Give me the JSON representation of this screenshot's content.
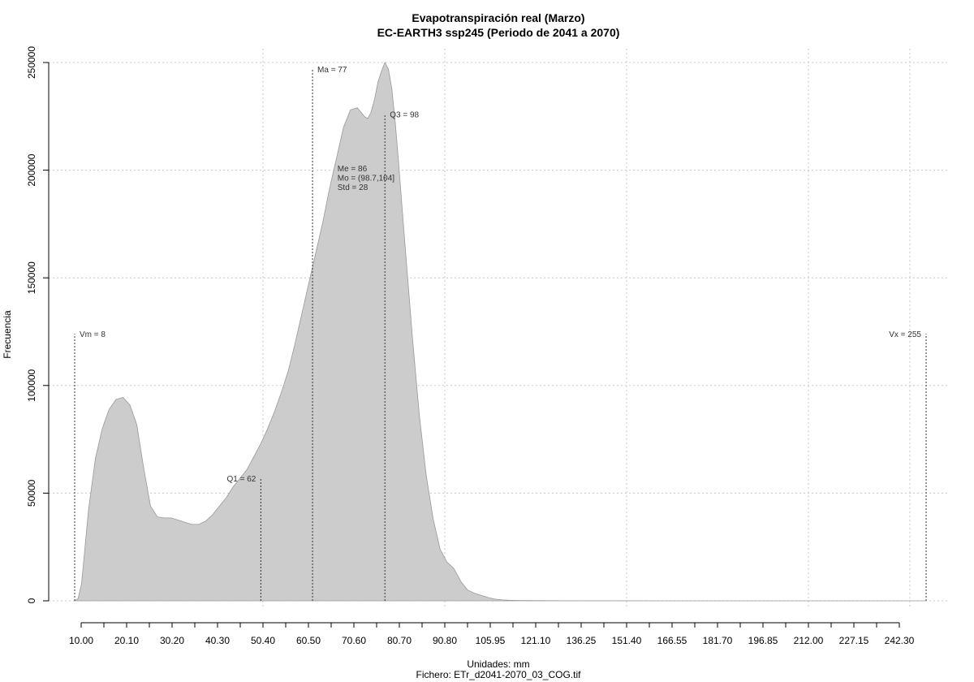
{
  "chart_data": {
    "type": "area",
    "title": "Evapotranspiración real (Marzo)",
    "subtitle": "EC-EARTH3 ssp245 (Periodo de 2041 a 2070)",
    "xlabel": "Unidades: mm",
    "ylabel": "Frecuencia",
    "footer": "Fichero: ETr_d2041-2070_03_COG.tif",
    "xlim": [
      0,
      255
    ],
    "ylim": [
      0,
      250000
    ],
    "grid": true,
    "fill_color": "#cccccc",
    "x_ticks": [
      "10.00",
      "20.10",
      "30.20",
      "40.30",
      "50.40",
      "60.50",
      "70.60",
      "80.70",
      "90.80",
      "105.95",
      "121.10",
      "136.25",
      "151.40",
      "166.55",
      "181.70",
      "196.85",
      "212.00",
      "227.15",
      "242.30"
    ],
    "y_ticks": [
      0,
      50000,
      100000,
      150000,
      200000,
      250000
    ],
    "y_tick_labels": [
      "0",
      "50000",
      "100000",
      "150000",
      "200000",
      "250000"
    ],
    "series": [
      {
        "x": [
          8,
          9,
          10,
          12,
          14,
          16,
          18,
          20,
          22,
          24,
          26,
          28,
          30,
          32,
          34,
          36,
          38,
          40,
          42,
          44,
          46,
          48,
          50,
          52,
          54,
          56,
          58,
          60,
          62,
          64,
          66,
          68,
          70,
          72,
          74,
          76,
          77,
          78,
          80,
          82,
          84,
          86,
          88,
          90,
          91,
          92,
          93,
          94,
          95,
          96,
          97,
          98,
          99,
          100,
          101,
          102,
          103,
          104,
          106,
          108,
          110,
          112,
          114,
          116,
          118,
          120,
          122,
          124,
          126,
          128,
          130,
          132,
          134,
          136,
          138,
          140,
          145,
          150,
          160,
          180,
          200,
          230,
          255
        ],
        "y": [
          0,
          1000,
          8000,
          42000,
          66000,
          80000,
          89000,
          93500,
          94500,
          91000,
          82000,
          62000,
          44000,
          39000,
          38500,
          38500,
          37500,
          36500,
          35500,
          35500,
          37000,
          40000,
          44000,
          48000,
          53000,
          57000,
          61000,
          67000,
          73000,
          80000,
          88000,
          97000,
          107000,
          120000,
          134000,
          148000,
          155000,
          162000,
          176000,
          192000,
          206000,
          220000,
          228000,
          229000,
          227000,
          225000,
          224000,
          227000,
          233000,
          241000,
          246000,
          250000,
          247000,
          238000,
          222000,
          203000,
          182000,
          162000,
          122000,
          86000,
          58000,
          38000,
          24000,
          18000,
          15000,
          9000,
          5000,
          3500,
          2500,
          1500,
          800,
          400,
          250,
          200,
          150,
          100,
          60,
          40,
          20,
          10,
          5,
          0,
          0
        ]
      }
    ],
    "annotations": [
      {
        "label": "Vm = 8",
        "x": 8,
        "y_top": 124000,
        "label_side": "right"
      },
      {
        "label": "Vx = 255",
        "x": 255,
        "y_top": 124000,
        "label_side": "left"
      },
      {
        "label": "Q1 = 62",
        "x": 62,
        "y_top": 57000,
        "label_side": "left"
      },
      {
        "label": "Ma = 77",
        "x": 77,
        "y_top": 247000,
        "label_side": "right"
      },
      {
        "label": "Q3 = 98",
        "x": 98,
        "y_top": 226000,
        "label_side": "right"
      }
    ],
    "stats_text": [
      "Me = 86",
      "Mo = (98.7,104]",
      "Std = 28"
    ],
    "stats_anchor": {
      "x": 84,
      "y": 201000
    }
  }
}
